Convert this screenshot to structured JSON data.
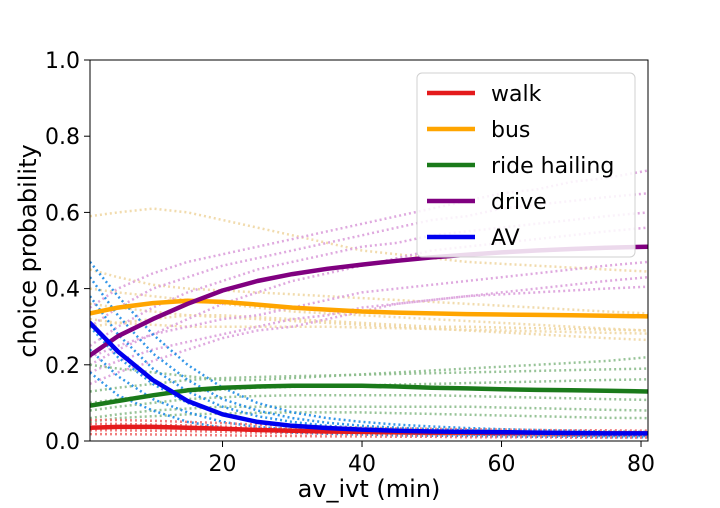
{
  "chart_data": {
    "type": "line",
    "title": "",
    "xlabel": "av_ivt (min)",
    "ylabel": "choice probability",
    "xlim": [
      1,
      81
    ],
    "ylim": [
      0,
      1
    ],
    "xticks": [
      20,
      40,
      60,
      80
    ],
    "yticks": [
      0.0,
      0.2,
      0.4,
      0.6,
      0.8,
      1.0
    ],
    "ytick_labels": [
      "0.0",
      "0.2",
      "0.4",
      "0.6",
      "0.8",
      "1.0"
    ],
    "xtick_labels": [
      "20",
      "40",
      "60",
      "80"
    ],
    "grid": false,
    "legend_position": "top-right",
    "x": [
      1,
      5,
      10,
      15,
      20,
      25,
      30,
      35,
      40,
      45,
      50,
      55,
      60,
      65,
      70,
      75,
      81
    ],
    "series": [
      {
        "name": "walk",
        "color": "#e41a1c",
        "values": [
          0.035,
          0.037,
          0.037,
          0.035,
          0.032,
          0.029,
          0.027,
          0.025,
          0.024,
          0.023,
          0.022,
          0.022,
          0.021,
          0.021,
          0.02,
          0.02,
          0.02
        ]
      },
      {
        "name": "bus",
        "color": "#ffa500",
        "values": [
          0.335,
          0.35,
          0.362,
          0.368,
          0.365,
          0.358,
          0.35,
          0.345,
          0.34,
          0.337,
          0.335,
          0.333,
          0.332,
          0.331,
          0.33,
          0.329,
          0.327
        ]
      },
      {
        "name": "ride hailing",
        "color": "#1a7a1a",
        "values": [
          0.093,
          0.105,
          0.12,
          0.133,
          0.14,
          0.143,
          0.145,
          0.145,
          0.145,
          0.143,
          0.14,
          0.138,
          0.136,
          0.134,
          0.133,
          0.132,
          0.13
        ]
      },
      {
        "name": "drive",
        "color": "#800080",
        "values": [
          0.225,
          0.275,
          0.32,
          0.36,
          0.395,
          0.42,
          0.438,
          0.452,
          0.463,
          0.473,
          0.482,
          0.489,
          0.495,
          0.5,
          0.504,
          0.507,
          0.51
        ]
      },
      {
        "name": "AV",
        "color": "#0000ee",
        "values": [
          0.31,
          0.235,
          0.16,
          0.105,
          0.07,
          0.05,
          0.04,
          0.034,
          0.03,
          0.027,
          0.025,
          0.024,
          0.023,
          0.022,
          0.021,
          0.02,
          0.02
        ]
      }
    ],
    "background_lines": [
      {
        "color": "#f0d7a4",
        "series": [
          [
            0.59,
            0.6,
            0.61,
            0.6,
            0.58,
            0.56,
            0.54,
            0.52,
            0.5,
            0.49,
            0.48,
            0.47,
            0.465,
            0.46,
            0.455,
            0.45,
            0.445
          ],
          [
            0.45,
            0.43,
            0.41,
            0.4,
            0.395,
            0.39,
            0.385,
            0.38,
            0.375,
            0.37,
            0.365,
            0.36,
            0.355,
            0.35,
            0.345,
            0.34,
            0.335
          ],
          [
            0.4,
            0.39,
            0.38,
            0.37,
            0.36,
            0.35,
            0.34,
            0.335,
            0.33,
            0.325,
            0.32,
            0.315,
            0.31,
            0.305,
            0.3,
            0.295,
            0.29
          ],
          [
            0.36,
            0.35,
            0.34,
            0.33,
            0.325,
            0.32,
            0.315,
            0.31,
            0.305,
            0.3,
            0.295,
            0.29,
            0.285,
            0.28,
            0.275,
            0.27,
            0.265
          ],
          [
            0.32,
            0.31,
            0.305,
            0.3,
            0.3,
            0.3,
            0.3,
            0.3,
            0.298,
            0.296,
            0.294,
            0.292,
            0.29,
            0.288,
            0.286,
            0.284,
            0.282
          ],
          [
            0.3,
            0.31,
            0.32,
            0.33,
            0.33,
            0.325,
            0.32,
            0.315,
            0.31,
            0.305,
            0.3,
            0.3,
            0.298,
            0.296,
            0.294,
            0.292,
            0.29
          ]
        ]
      },
      {
        "color": "#dca0dc",
        "series": [
          [
            0.35,
            0.4,
            0.44,
            0.47,
            0.49,
            0.51,
            0.53,
            0.55,
            0.57,
            0.59,
            0.61,
            0.63,
            0.65,
            0.66,
            0.68,
            0.69,
            0.71
          ],
          [
            0.3,
            0.35,
            0.4,
            0.43,
            0.46,
            0.48,
            0.5,
            0.52,
            0.54,
            0.56,
            0.58,
            0.59,
            0.61,
            0.62,
            0.63,
            0.64,
            0.65
          ],
          [
            0.25,
            0.3,
            0.35,
            0.39,
            0.42,
            0.45,
            0.47,
            0.49,
            0.51,
            0.52,
            0.54,
            0.55,
            0.56,
            0.57,
            0.58,
            0.59,
            0.6
          ],
          [
            0.2,
            0.24,
            0.28,
            0.32,
            0.36,
            0.39,
            0.42,
            0.44,
            0.46,
            0.48,
            0.5,
            0.51,
            0.52,
            0.53,
            0.54,
            0.55,
            0.56
          ],
          [
            0.22,
            0.25,
            0.28,
            0.3,
            0.32,
            0.33,
            0.35,
            0.37,
            0.39,
            0.4,
            0.41,
            0.42,
            0.43,
            0.44,
            0.45,
            0.46,
            0.47
          ],
          [
            0.18,
            0.21,
            0.24,
            0.26,
            0.28,
            0.3,
            0.32,
            0.33,
            0.35,
            0.36,
            0.37,
            0.38,
            0.39,
            0.4,
            0.41,
            0.42,
            0.43
          ],
          [
            0.15,
            0.18,
            0.21,
            0.24,
            0.27,
            0.29,
            0.3,
            0.32,
            0.34,
            0.36,
            0.37,
            0.38,
            0.385,
            0.39,
            0.395,
            0.4,
            0.405
          ]
        ]
      },
      {
        "color": "#8cbc8c",
        "series": [
          [
            0.2,
            0.19,
            0.18,
            0.17,
            0.16,
            0.16,
            0.165,
            0.17,
            0.175,
            0.18,
            0.185,
            0.19,
            0.195,
            0.2,
            0.205,
            0.21,
            0.22
          ],
          [
            0.13,
            0.14,
            0.15,
            0.16,
            0.165,
            0.168,
            0.17,
            0.172,
            0.174,
            0.176,
            0.178,
            0.18,
            0.182,
            0.184,
            0.186,
            0.188,
            0.19
          ],
          [
            0.1,
            0.11,
            0.12,
            0.13,
            0.135,
            0.14,
            0.142,
            0.144,
            0.146,
            0.148,
            0.15,
            0.152,
            0.154,
            0.156,
            0.158,
            0.16,
            0.162
          ],
          [
            0.08,
            0.09,
            0.1,
            0.11,
            0.115,
            0.118,
            0.12,
            0.12,
            0.12,
            0.12,
            0.12,
            0.118,
            0.116,
            0.114,
            0.112,
            0.11,
            0.108
          ],
          [
            0.06,
            0.07,
            0.08,
            0.085,
            0.09,
            0.09,
            0.09,
            0.09,
            0.09,
            0.09,
            0.09,
            0.09,
            0.088,
            0.086,
            0.084,
            0.082,
            0.08
          ],
          [
            0.05,
            0.06,
            0.065,
            0.07,
            0.072,
            0.074,
            0.075,
            0.075,
            0.075,
            0.073,
            0.071,
            0.069,
            0.067,
            0.065,
            0.063,
            0.061,
            0.06
          ]
        ]
      },
      {
        "color": "#1e8ce6",
        "series": [
          [
            0.47,
            0.38,
            0.28,
            0.2,
            0.14,
            0.1,
            0.075,
            0.06,
            0.05,
            0.043,
            0.038,
            0.034,
            0.031,
            0.029,
            0.027,
            0.025,
            0.024
          ],
          [
            0.43,
            0.33,
            0.23,
            0.16,
            0.11,
            0.08,
            0.06,
            0.048,
            0.04,
            0.035,
            0.031,
            0.028,
            0.026,
            0.024,
            0.022,
            0.021,
            0.02
          ],
          [
            0.38,
            0.28,
            0.19,
            0.13,
            0.09,
            0.065,
            0.05,
            0.04,
            0.034,
            0.03,
            0.027,
            0.025,
            0.023,
            0.022,
            0.021,
            0.02,
            0.019
          ],
          [
            0.3,
            0.22,
            0.15,
            0.1,
            0.07,
            0.05,
            0.04,
            0.033,
            0.028,
            0.025,
            0.023,
            0.021,
            0.02,
            0.019,
            0.018,
            0.017,
            0.016
          ],
          [
            0.24,
            0.17,
            0.11,
            0.075,
            0.05,
            0.037,
            0.03,
            0.025,
            0.022,
            0.02,
            0.018,
            0.017,
            0.016,
            0.015,
            0.014,
            0.013,
            0.013
          ],
          [
            0.18,
            0.12,
            0.08,
            0.05,
            0.035,
            0.027,
            0.022,
            0.019,
            0.017,
            0.015,
            0.014,
            0.013,
            0.012,
            0.011,
            0.011,
            0.01,
            0.01
          ]
        ]
      },
      {
        "color": "#f07070",
        "series": [
          [
            0.055,
            0.055,
            0.053,
            0.05,
            0.047,
            0.043,
            0.04,
            0.037,
            0.035,
            0.033,
            0.032,
            0.031,
            0.03,
            0.029,
            0.028,
            0.028,
            0.027
          ],
          [
            0.045,
            0.045,
            0.043,
            0.041,
            0.038,
            0.035,
            0.033,
            0.031,
            0.029,
            0.028,
            0.027,
            0.026,
            0.025,
            0.024,
            0.024,
            0.023,
            0.023
          ],
          [
            0.028,
            0.028,
            0.027,
            0.026,
            0.024,
            0.022,
            0.021,
            0.02,
            0.019,
            0.018,
            0.017,
            0.017,
            0.016,
            0.016,
            0.015,
            0.015,
            0.015
          ],
          [
            0.018,
            0.018,
            0.017,
            0.016,
            0.015,
            0.014,
            0.013,
            0.012,
            0.012,
            0.011,
            0.011,
            0.01,
            0.01,
            0.01,
            0.009,
            0.009,
            0.009
          ]
        ]
      }
    ]
  }
}
